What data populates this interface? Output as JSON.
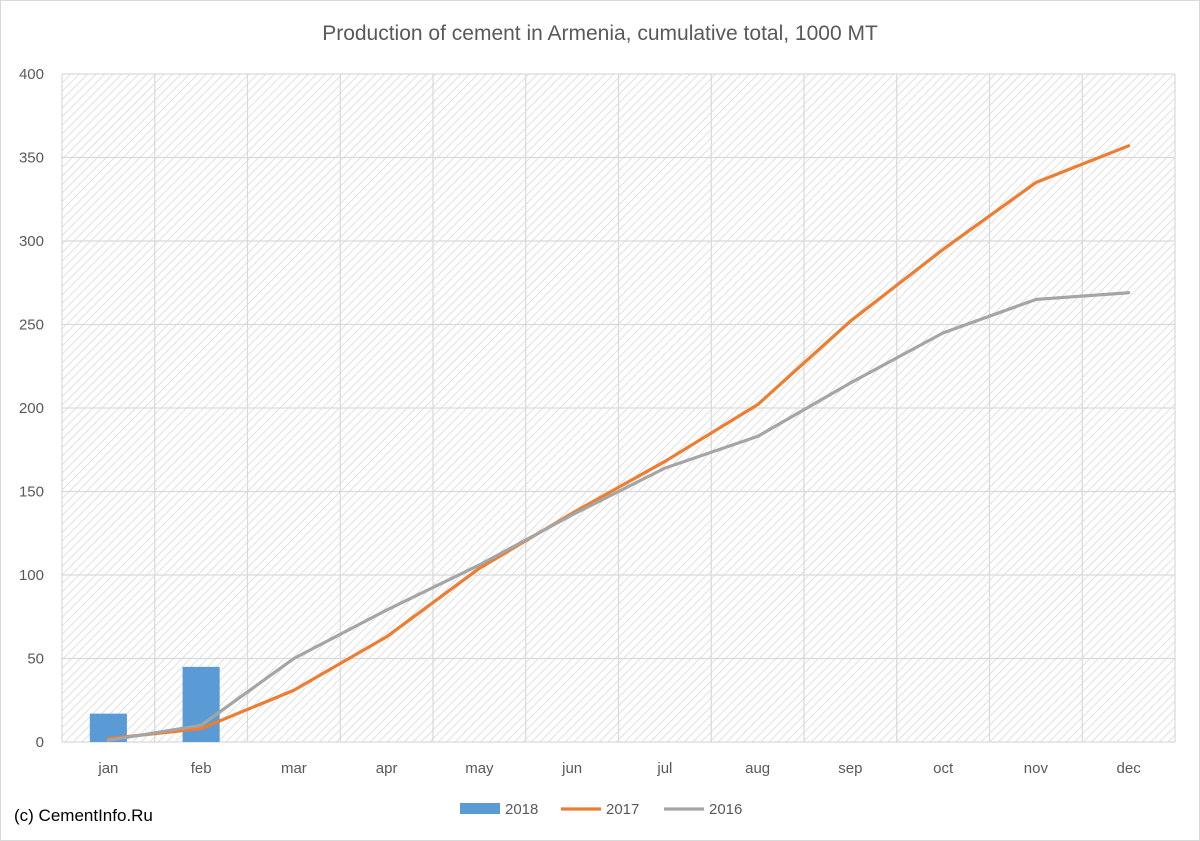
{
  "colors": {
    "series_2018": "#5b9bd5",
    "series_2017": "#ed7d31",
    "series_2016": "#a5a5a5",
    "text": "#595959",
    "grid": "#d9d9d9"
  },
  "credit": "(c) CementInfo.Ru",
  "chart_data": {
    "type": "bar",
    "title": "Production of cement in Armenia, cumulative total, 1000 MT",
    "xlabel": "",
    "ylabel": "",
    "categories": [
      "jan",
      "feb",
      "mar",
      "apr",
      "may",
      "jun",
      "jul",
      "aug",
      "sep",
      "oct",
      "nov",
      "dec"
    ],
    "ylim": [
      0,
      400
    ],
    "yticks": [
      0,
      50,
      100,
      150,
      200,
      250,
      300,
      350,
      400
    ],
    "grid": true,
    "legend_position": "bottom",
    "series": [
      {
        "name": "2018",
        "type": "bar",
        "color": "#5b9bd5",
        "values": [
          17,
          45,
          null,
          null,
          null,
          null,
          null,
          null,
          null,
          null,
          null,
          null
        ]
      },
      {
        "name": "2017",
        "type": "line",
        "color": "#ed7d31",
        "values": [
          2,
          8,
          31,
          63,
          104,
          137,
          168,
          202,
          252,
          295,
          335,
          357
        ]
      },
      {
        "name": "2016",
        "type": "line",
        "color": "#a5a5a5",
        "values": [
          1,
          10,
          50,
          79,
          106,
          136,
          164,
          183,
          215,
          245,
          265,
          269
        ]
      }
    ]
  }
}
